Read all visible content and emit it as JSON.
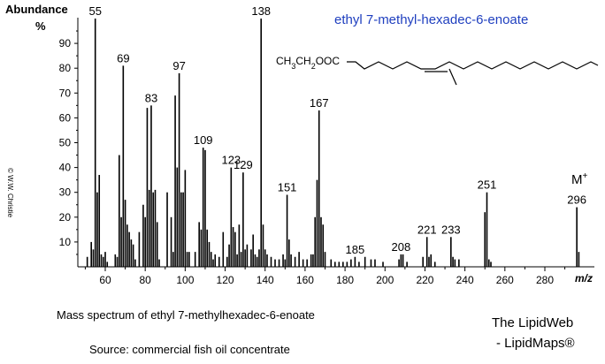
{
  "chart_data": {
    "type": "bar",
    "title": "ethyl 7-methyl-hexadec-6-enoate",
    "ylabel": "Abundance",
    "yunit": "%",
    "xlabel": "m/z",
    "xlim": [
      45,
      302
    ],
    "ylim": [
      0,
      100
    ],
    "xticks": [
      60,
      80,
      100,
      120,
      140,
      160,
      180,
      200,
      220,
      240,
      260,
      280
    ],
    "yticks": [
      10,
      20,
      30,
      40,
      50,
      60,
      70,
      80,
      90
    ],
    "grid": false,
    "x": [
      51,
      53,
      54,
      55,
      56,
      57,
      58,
      59,
      60,
      61,
      65,
      66,
      67,
      68,
      69,
      70,
      71,
      72,
      73,
      74,
      75,
      77,
      79,
      80,
      81,
      82,
      83,
      84,
      85,
      86,
      87,
      91,
      93,
      94,
      95,
      96,
      97,
      98,
      99,
      100,
      101,
      102,
      105,
      107,
      108,
      109,
      110,
      111,
      112,
      113,
      114,
      115,
      117,
      119,
      121,
      122,
      123,
      124,
      125,
      126,
      127,
      128,
      129,
      130,
      131,
      133,
      134,
      135,
      136,
      137,
      138,
      139,
      140,
      141,
      143,
      145,
      147,
      149,
      150,
      151,
      152,
      153,
      155,
      157,
      159,
      161,
      163,
      164,
      165,
      166,
      167,
      168,
      169,
      170,
      173,
      175,
      177,
      179,
      181,
      183,
      185,
      187,
      190,
      193,
      195,
      199,
      207,
      208,
      209,
      211,
      219,
      221,
      222,
      223,
      225,
      233,
      234,
      235,
      237,
      250,
      251,
      252,
      253,
      296,
      297
    ],
    "values": [
      4,
      10,
      7,
      100,
      30,
      37,
      5,
      4,
      6,
      2,
      5,
      4,
      45,
      20,
      81,
      27,
      17,
      14,
      11,
      9,
      3,
      14,
      25,
      20,
      64,
      31,
      65,
      30,
      31,
      18,
      3,
      30,
      20,
      6,
      69,
      40,
      78,
      30,
      30,
      39,
      6,
      6,
      6,
      18,
      15,
      48,
      47,
      15,
      10,
      6,
      3,
      5,
      4,
      14,
      4,
      9,
      40,
      16,
      14,
      5,
      17,
      6,
      38,
      7,
      9,
      7,
      13,
      5,
      4,
      7,
      100,
      17,
      7,
      5,
      4,
      3,
      3,
      5,
      3,
      29,
      11,
      5,
      4,
      6,
      3,
      3,
      5,
      5,
      20,
      35,
      63,
      20,
      17,
      6,
      3,
      2,
      2,
      2,
      2,
      3,
      4,
      2,
      4,
      3,
      3,
      2,
      3,
      5,
      5,
      2,
      4,
      12,
      4,
      5,
      2,
      12,
      4,
      3,
      3,
      22,
      30,
      3,
      2,
      24,
      6
    ],
    "peak_labels": [
      {
        "mz": 55,
        "text": "55"
      },
      {
        "mz": 69,
        "text": "69"
      },
      {
        "mz": 83,
        "text": "83"
      },
      {
        "mz": 97,
        "text": "97"
      },
      {
        "mz": 109,
        "text": "109"
      },
      {
        "mz": 123,
        "text": "123"
      },
      {
        "mz": 129,
        "text": "129"
      },
      {
        "mz": 138,
        "text": "138"
      },
      {
        "mz": 151,
        "text": "151"
      },
      {
        "mz": 167,
        "text": "167"
      },
      {
        "mz": 185,
        "text": "185"
      },
      {
        "mz": 208,
        "text": "208"
      },
      {
        "mz": 221,
        "text": "221"
      },
      {
        "mz": 233,
        "text": "233"
      },
      {
        "mz": 251,
        "text": "251"
      },
      {
        "mz": 296,
        "text": "296"
      }
    ],
    "molecular_ion_label": "M+",
    "structure_label": "CH3CH2OOC"
  },
  "texts": {
    "copyright": "© W.W. Christie",
    "caption": "Mass spectrum of ethyl 7-methylhexadec-6-enoate",
    "source": "Source: commercial fish oil concentrate",
    "site_line1": "The LipidWeb",
    "site_line2": "- LipidMaps®"
  },
  "colors": {
    "title": "#1f3fbf",
    "bars": "#000000"
  }
}
